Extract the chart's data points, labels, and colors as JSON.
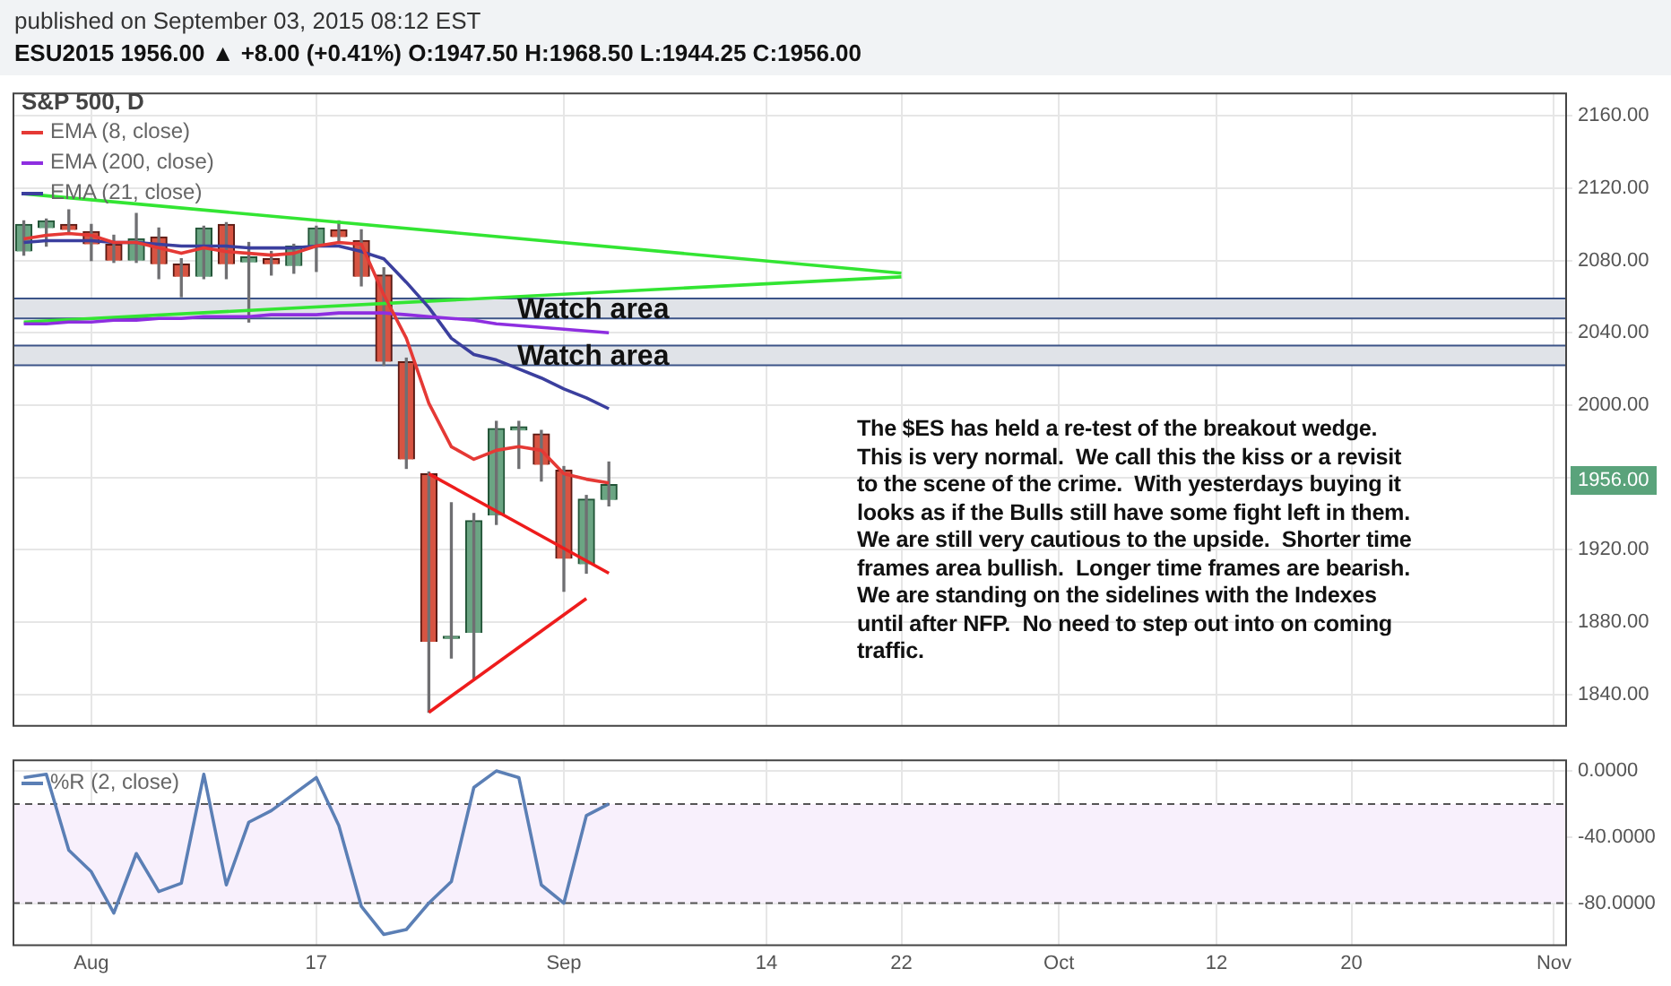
{
  "chart_data": [
    {
      "type": "candlestick",
      "title": "published on September 03, 2015 08:12 EST",
      "subtitle": "ESU2015 1956.00 ▲ +8.00 (+0.41%) O:1947.50 H:1968.50 L:1944.25 C:1956.00",
      "legend_title": "S&P 500, D",
      "legend": "top left",
      "tick_labels": "y",
      "grid": true,
      "categories": [
        null,
        null,
        null,
        null,
        null,
        null,
        null,
        null,
        null,
        null,
        null,
        null,
        null,
        null,
        null,
        null,
        null,
        null,
        null,
        null,
        null,
        null,
        null,
        null,
        null,
        null,
        null,
        null,
        null,
        null,
        null,
        null,
        null,
        null,
        null,
        null,
        null,
        null,
        null,
        null,
        null,
        null,
        null,
        null,
        null,
        null,
        null,
        null,
        null,
        null,
        null,
        null,
        null,
        null,
        null,
        null,
        null,
        null,
        null,
        null,
        null,
        null,
        null,
        null,
        null,
        null,
        null,
        null,
        null
      ],
      "ohlc": [
        [
          2085,
          2102,
          2083,
          2100
        ],
        [
          2098,
          2103,
          2088,
          2102
        ],
        [
          2100,
          2108,
          2095,
          2097
        ],
        [
          2096,
          2100,
          2080,
          2089
        ],
        [
          2089,
          2094,
          2079,
          2080
        ],
        [
          2080,
          2106,
          2079,
          2092
        ],
        [
          2093,
          2098,
          2070,
          2078
        ],
        [
          2078,
          2081,
          2060,
          2071
        ],
        [
          2071,
          2099,
          2070,
          2098
        ],
        [
          2100,
          2101,
          2070,
          2078
        ],
        [
          2079,
          2090,
          2046,
          2082
        ],
        [
          2081,
          2085,
          2072,
          2078
        ],
        [
          2077,
          2089,
          2073,
          2088
        ],
        [
          2088,
          2099,
          2074,
          2098
        ],
        [
          2097,
          2102,
          2090,
          2093
        ],
        [
          2091,
          2097,
          2066,
          2071
        ],
        [
          2072,
          2076,
          2022,
          2024
        ],
        [
          2024,
          2026,
          1965,
          1970
        ],
        [
          1962,
          1963,
          1830,
          1869
        ],
        [
          1871,
          1946,
          1860,
          1872
        ],
        [
          1874,
          1940,
          1849,
          1936
        ],
        [
          1939,
          1991,
          1934,
          1987
        ],
        [
          1986,
          1991,
          1965,
          1988
        ],
        [
          1984,
          1986,
          1958,
          1967
        ],
        [
          1964,
          1966,
          1897,
          1915
        ],
        [
          1912,
          1950,
          1907,
          1948
        ],
        [
          1947.5,
          1968.5,
          1944.25,
          1956
        ],
        null,
        null,
        null,
        null,
        null,
        null,
        null,
        null,
        null,
        null,
        null,
        null,
        null,
        null,
        null,
        null,
        null,
        null,
        null,
        null,
        null,
        null,
        null,
        null,
        null,
        null,
        null,
        null,
        null,
        null,
        null,
        null,
        null,
        null,
        null,
        null,
        null,
        null,
        null,
        null,
        null,
        null
      ],
      "series": [
        {
          "type": "line",
          "name": "EMA (8, close)",
          "color": "#e53935",
          "values": [
            2092,
            2094,
            2095,
            2094,
            2090,
            2090,
            2087,
            2084,
            2087,
            2085,
            2084,
            2083,
            2084,
            2088,
            2090,
            2089,
            2061,
            2037,
            2001,
            1977,
            1970,
            1975,
            1977,
            1975,
            1962,
            1959,
            1957,
            null,
            null,
            null,
            null,
            null,
            null,
            null,
            null,
            null,
            null,
            null,
            null,
            null,
            null,
            null,
            null,
            null,
            null,
            null,
            null,
            null,
            null,
            null,
            null,
            null,
            null,
            null,
            null,
            null,
            null,
            null,
            null,
            null,
            null,
            null,
            null,
            null,
            null,
            null,
            null,
            null,
            null
          ]
        },
        {
          "type": "line",
          "name": "EMA (200, close)",
          "color": "#8e2ee0",
          "values": [
            2045,
            2045,
            2046,
            2046,
            2047,
            2047,
            2048,
            2048,
            2049,
            2049,
            2049,
            2050,
            2050,
            2050,
            2051,
            2051,
            2051,
            2050,
            2049,
            2048,
            2047,
            2045,
            2044,
            2043,
            2042,
            2041,
            2040,
            null,
            null,
            null,
            null,
            null,
            null,
            null,
            null,
            null,
            null,
            null,
            null,
            null,
            null,
            null,
            null,
            null,
            null,
            null,
            null,
            null,
            null,
            null,
            null,
            null,
            null,
            null,
            null,
            null,
            null,
            null,
            null,
            null,
            null,
            null,
            null,
            null,
            null,
            null,
            null,
            null,
            null
          ]
        },
        {
          "type": "line",
          "name": "EMA (21, close)",
          "color": "#3b3f9e",
          "values": [
            2090,
            2091,
            2091,
            2091,
            2090,
            2090,
            2089,
            2088,
            2088,
            2088,
            2087,
            2087,
            2087,
            2088,
            2088,
            2085,
            2081,
            2068,
            2054,
            2037,
            2028,
            2025,
            2020,
            2015,
            2009,
            2004,
            1998,
            null,
            null,
            null,
            null,
            null,
            null,
            null,
            null,
            null,
            null,
            null,
            null,
            null,
            null,
            null,
            null,
            null,
            null,
            null,
            null,
            null,
            null,
            null,
            null,
            null,
            null,
            null,
            null,
            null,
            null,
            null,
            null,
            null,
            null,
            null,
            null,
            null,
            null,
            null,
            null,
            null,
            null
          ]
        },
        {
          "type": "line",
          "color": "#33e533",
          "values": [
            2117,
            null,
            null,
            null,
            null,
            null,
            null,
            null,
            null,
            null,
            null,
            null,
            null,
            null,
            null,
            null,
            null,
            null,
            null,
            null,
            null,
            null,
            null,
            null,
            null,
            null,
            null,
            null,
            null,
            null,
            null,
            null,
            null,
            null,
            null,
            null,
            null,
            null,
            null,
            2073,
            null,
            null,
            null,
            null,
            null,
            null,
            null,
            null,
            null,
            null,
            null,
            null,
            null,
            null,
            null,
            null,
            null,
            null,
            null,
            null,
            null,
            null,
            null,
            null,
            null,
            null,
            null,
            null,
            null
          ]
        },
        {
          "type": "line",
          "color": "#33e533",
          "values": [
            2046,
            null,
            null,
            null,
            null,
            null,
            null,
            null,
            null,
            null,
            null,
            null,
            null,
            null,
            null,
            null,
            null,
            null,
            null,
            null,
            null,
            null,
            null,
            null,
            null,
            null,
            null,
            null,
            null,
            null,
            null,
            null,
            null,
            null,
            null,
            null,
            null,
            null,
            null,
            2071,
            null,
            null,
            null,
            null,
            null,
            null,
            null,
            null,
            null,
            null,
            null,
            null,
            null,
            null,
            null,
            null,
            null,
            null,
            null,
            null,
            null,
            null,
            null,
            null,
            null,
            null,
            null,
            null,
            null
          ]
        },
        {
          "type": "line",
          "color": "#ee1c1c",
          "values": [
            null,
            null,
            null,
            null,
            null,
            null,
            null,
            null,
            null,
            null,
            null,
            null,
            null,
            null,
            null,
            null,
            null,
            null,
            1962,
            null,
            null,
            null,
            null,
            null,
            null,
            null,
            1907,
            null,
            null,
            null,
            null,
            null,
            null,
            null,
            null,
            null,
            null,
            null,
            null,
            null,
            null,
            null,
            null,
            null,
            null,
            null,
            null,
            null,
            null,
            null,
            null,
            null,
            null,
            null,
            null,
            null,
            null,
            null,
            null,
            null,
            null,
            null,
            null,
            null,
            null,
            null,
            null,
            null,
            null
          ]
        },
        {
          "type": "line",
          "color": "#ee1c1c",
          "values": [
            null,
            null,
            null,
            null,
            null,
            null,
            null,
            null,
            null,
            null,
            null,
            null,
            null,
            null,
            null,
            null,
            null,
            null,
            1830,
            null,
            null,
            null,
            null,
            null,
            null,
            1893,
            null,
            null,
            null,
            null,
            null,
            null,
            null,
            null,
            null,
            null,
            null,
            null,
            null,
            null,
            null,
            null,
            null,
            null,
            null,
            null,
            null,
            null,
            null,
            null,
            null,
            null,
            null,
            null,
            null,
            null,
            null,
            null,
            null,
            null,
            null,
            null,
            null,
            null,
            null,
            null,
            null,
            null,
            null
          ]
        }
      ],
      "ylim": [
        1823,
        2173
      ],
      "yticks": [
        {
          "value": 1840,
          "label": "1840.00"
        },
        {
          "value": 1880,
          "label": "1880.00"
        },
        {
          "value": 1920,
          "label": "1920.00"
        },
        {
          "value": 1960,
          "label": null
        },
        {
          "value": 2000,
          "label": "2000.00"
        },
        {
          "value": 2040,
          "label": "2040.00"
        },
        {
          "value": 2080,
          "label": "2080.00"
        },
        {
          "value": 2120,
          "label": "2120.00"
        },
        {
          "value": 2160,
          "label": "2160.00"
        }
      ],
      "bands": [
        {
          "axis": "y",
          "from": 2048,
          "to": 2059,
          "label": "Watch area",
          "color": "#e0e3e8"
        },
        {
          "axis": "y",
          "from": 2022,
          "to": 2033,
          "label": "Watch area",
          "color": "#e0e3e8"
        }
      ],
      "ref_lines": [
        {
          "axis": "y",
          "value": 2059,
          "color": "#3c5488"
        },
        {
          "axis": "y",
          "value": 2048,
          "color": "#3c5488"
        },
        {
          "axis": "y",
          "value": 2033,
          "color": "#3c5488"
        },
        {
          "axis": "y",
          "value": 2022,
          "color": "#3c5488"
        }
      ],
      "annotations": [
        "1956.00",
        "The $ES has held a re-test of the breakout wedge.  This is very normal.  We call this the kiss or a revisit to the scene of the crime.  With yesterdays buying it looks as if the Bulls still have some fight left in them.  We are still very cautious to the upside.  Shorter time frames area bullish.  Longer time frames are bearish.  We are standing on the sidelines with the Indexes until after NFP.  No need to step out into on coming traffic."
      ]
    },
    {
      "type": "line",
      "legend": "top left",
      "grid": true,
      "marker": "none",
      "categories": [
        null,
        null,
        null,
        "Aug",
        null,
        null,
        null,
        null,
        null,
        null,
        null,
        null,
        null,
        "17",
        null,
        null,
        null,
        null,
        null,
        null,
        null,
        null,
        null,
        null,
        "Sep",
        null,
        null,
        null,
        null,
        null,
        null,
        null,
        null,
        "14",
        null,
        null,
        null,
        null,
        null,
        "22",
        null,
        null,
        null,
        null,
        null,
        null,
        "Oct",
        null,
        null,
        null,
        null,
        null,
        null,
        "12",
        null,
        null,
        null,
        null,
        null,
        "20",
        null,
        null,
        null,
        null,
        null,
        null,
        null,
        null,
        "Nov"
      ],
      "series": [
        {
          "name": "%R (2, close)",
          "color": "#5b7fb5",
          "values": [
            -4,
            -2,
            -48,
            -61,
            -86,
            -50,
            -73,
            -68,
            -2,
            -69,
            -31,
            -24,
            -14,
            -4,
            -33,
            -82,
            -99,
            -96,
            -80,
            -67,
            -10,
            0,
            -4,
            -69,
            -80,
            -27,
            -20,
            null,
            null,
            null,
            null,
            null,
            null,
            null,
            null,
            null,
            null,
            null,
            null,
            null,
            null,
            null,
            null,
            null,
            null,
            null,
            null,
            null,
            null,
            null,
            null,
            null,
            null,
            null,
            null,
            null,
            null,
            null,
            null,
            null,
            null,
            null,
            null,
            null,
            null,
            null,
            null,
            null,
            null
          ]
        }
      ],
      "ylim": [
        -105,
        7
      ],
      "yticks": [
        {
          "value": 0,
          "label": "0.0000"
        },
        {
          "value": -40,
          "label": "-40.0000"
        },
        {
          "value": -80,
          "label": "-80.0000"
        }
      ],
      "ref_lines": [
        {
          "axis": "y",
          "value": -20,
          "line_style": "dashed",
          "color": "#555555"
        },
        {
          "axis": "y",
          "value": -80,
          "line_style": "dashed",
          "color": "#555555"
        }
      ],
      "bands": [
        {
          "axis": "y",
          "from": -80,
          "to": -20,
          "color": "#f8f0fc"
        }
      ]
    }
  ]
}
